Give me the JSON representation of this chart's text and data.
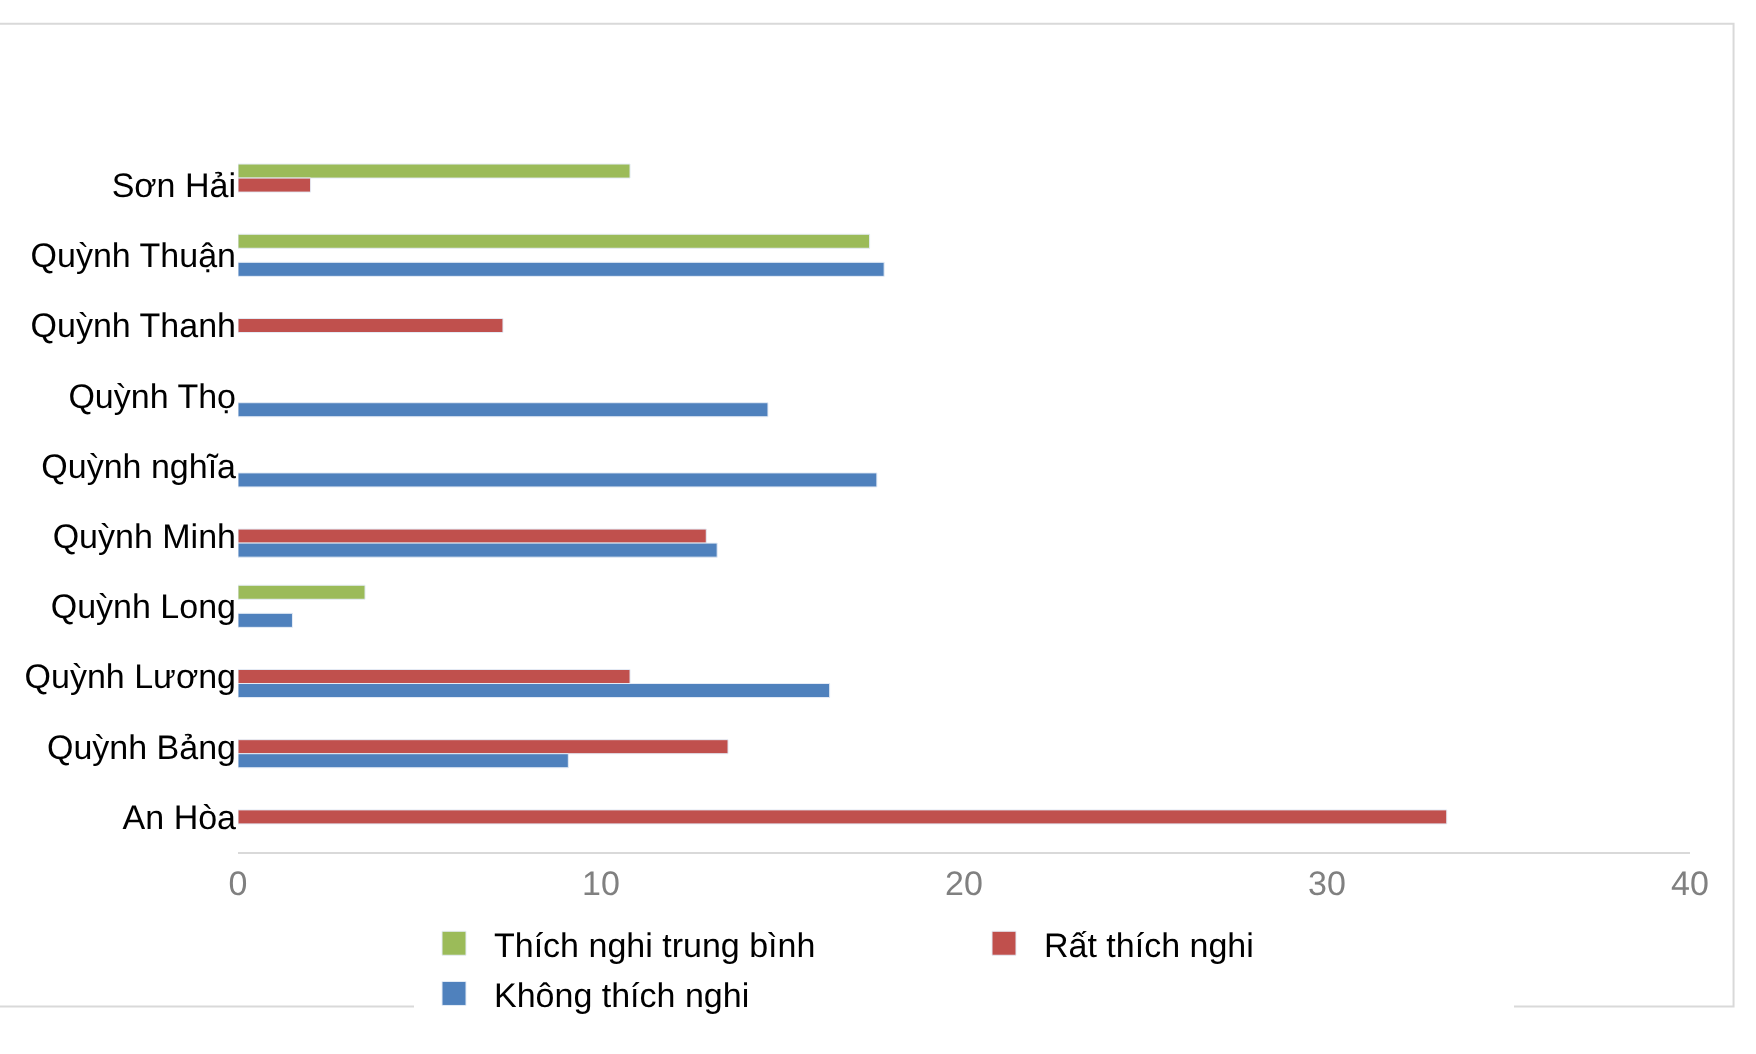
{
  "chart_data": {
    "type": "bar",
    "orientation": "horizontal",
    "categories": [
      "Sơn Hải",
      "Quỳnh Thuận",
      "Quỳnh Thanh",
      "Quỳnh Thọ",
      "Quỳnh nghĩa",
      "Quỳnh Minh",
      "Quỳnh Long",
      "Quỳnh Lương",
      "Quỳnh Bảng",
      "An Hòa"
    ],
    "series": [
      {
        "name": "Thích nghi trung bình",
        "color": "#9bbb59",
        "values": [
          10.8,
          17.4,
          null,
          null,
          null,
          null,
          3.5,
          null,
          null,
          null
        ]
      },
      {
        "name": "Rất thích nghi",
        "color": "#c0504d",
        "values": [
          2.0,
          null,
          7.3,
          null,
          null,
          12.9,
          null,
          10.8,
          13.5,
          33.3
        ]
      },
      {
        "name": "Không thích nghi",
        "color": "#4f81bd",
        "values": [
          null,
          17.8,
          null,
          14.6,
          17.6,
          13.2,
          1.5,
          16.3,
          9.1,
          null
        ]
      }
    ],
    "xlim": [
      0,
      40
    ],
    "xticks": [
      0,
      10,
      20,
      30,
      40
    ],
    "legend": "bottom"
  }
}
